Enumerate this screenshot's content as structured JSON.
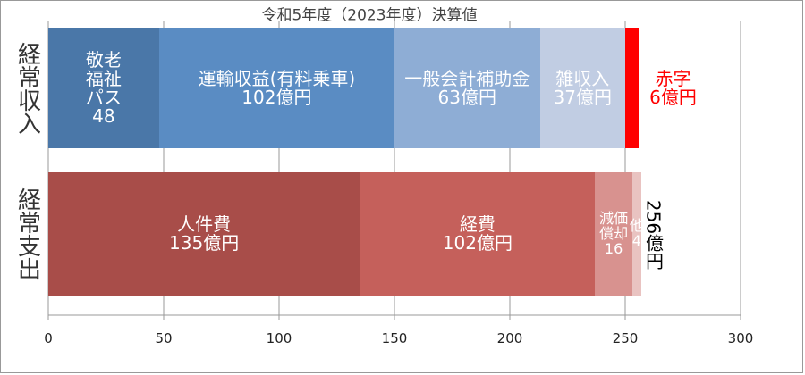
{
  "chart_data": {
    "type": "stacked-bar-horizontal",
    "title": "令和5年度（2023年度）決算値",
    "categories": [
      "経常収入",
      "経常支出"
    ],
    "series": [
      {
        "name": "敬老\n福祉\nパス",
        "color": "#4a77a8",
        "label_color": "#ffffff",
        "values": [
          48,
          null
        ],
        "value_labels": [
          "48",
          null
        ]
      },
      {
        "name": "運輸収益(有料乗車)",
        "color": "#5a8cc3",
        "label_color": "#ffffff",
        "values": [
          102,
          null
        ],
        "value_labels": [
          "102億円",
          null
        ]
      },
      {
        "name": "一般会計補助金",
        "color": "#8eadd5",
        "label_color": "#ffffff",
        "values": [
          63,
          null
        ],
        "value_labels": [
          "63億円",
          null
        ]
      },
      {
        "name": "雑収入",
        "color": "#c1cde3",
        "label_color": "#ffffff",
        "values": [
          37,
          null
        ],
        "value_labels": [
          "37億円",
          null
        ]
      },
      {
        "name": "赤字",
        "color": "#ff0000",
        "label_color": "#ff0000",
        "values": [
          6,
          null
        ],
        "value_labels": [
          "6億円",
          null
        ]
      },
      {
        "name": "人件費",
        "color": "#a84d49",
        "label_color": "#ffffff",
        "values": [
          null,
          135
        ],
        "value_labels": [
          null,
          "135億円"
        ]
      },
      {
        "name": "経費",
        "color": "#c5605b",
        "label_color": "#ffffff",
        "values": [
          null,
          102
        ],
        "value_labels": [
          null,
          "102億円"
        ]
      },
      {
        "name": "減価\n償却",
        "color": "#d8928f",
        "label_color": "#ffffff",
        "values": [
          null,
          16
        ],
        "value_labels": [
          null,
          "16"
        ]
      },
      {
        "name": "他",
        "color": "#e9c3c1",
        "label_color": "#ffffff",
        "values": [
          null,
          4
        ],
        "value_labels": [
          null,
          "4"
        ]
      }
    ],
    "annotation": "256億円",
    "xlim": [
      0,
      300
    ],
    "xticks": [
      0,
      50,
      100,
      150,
      200,
      250,
      300
    ],
    "grid": true
  }
}
